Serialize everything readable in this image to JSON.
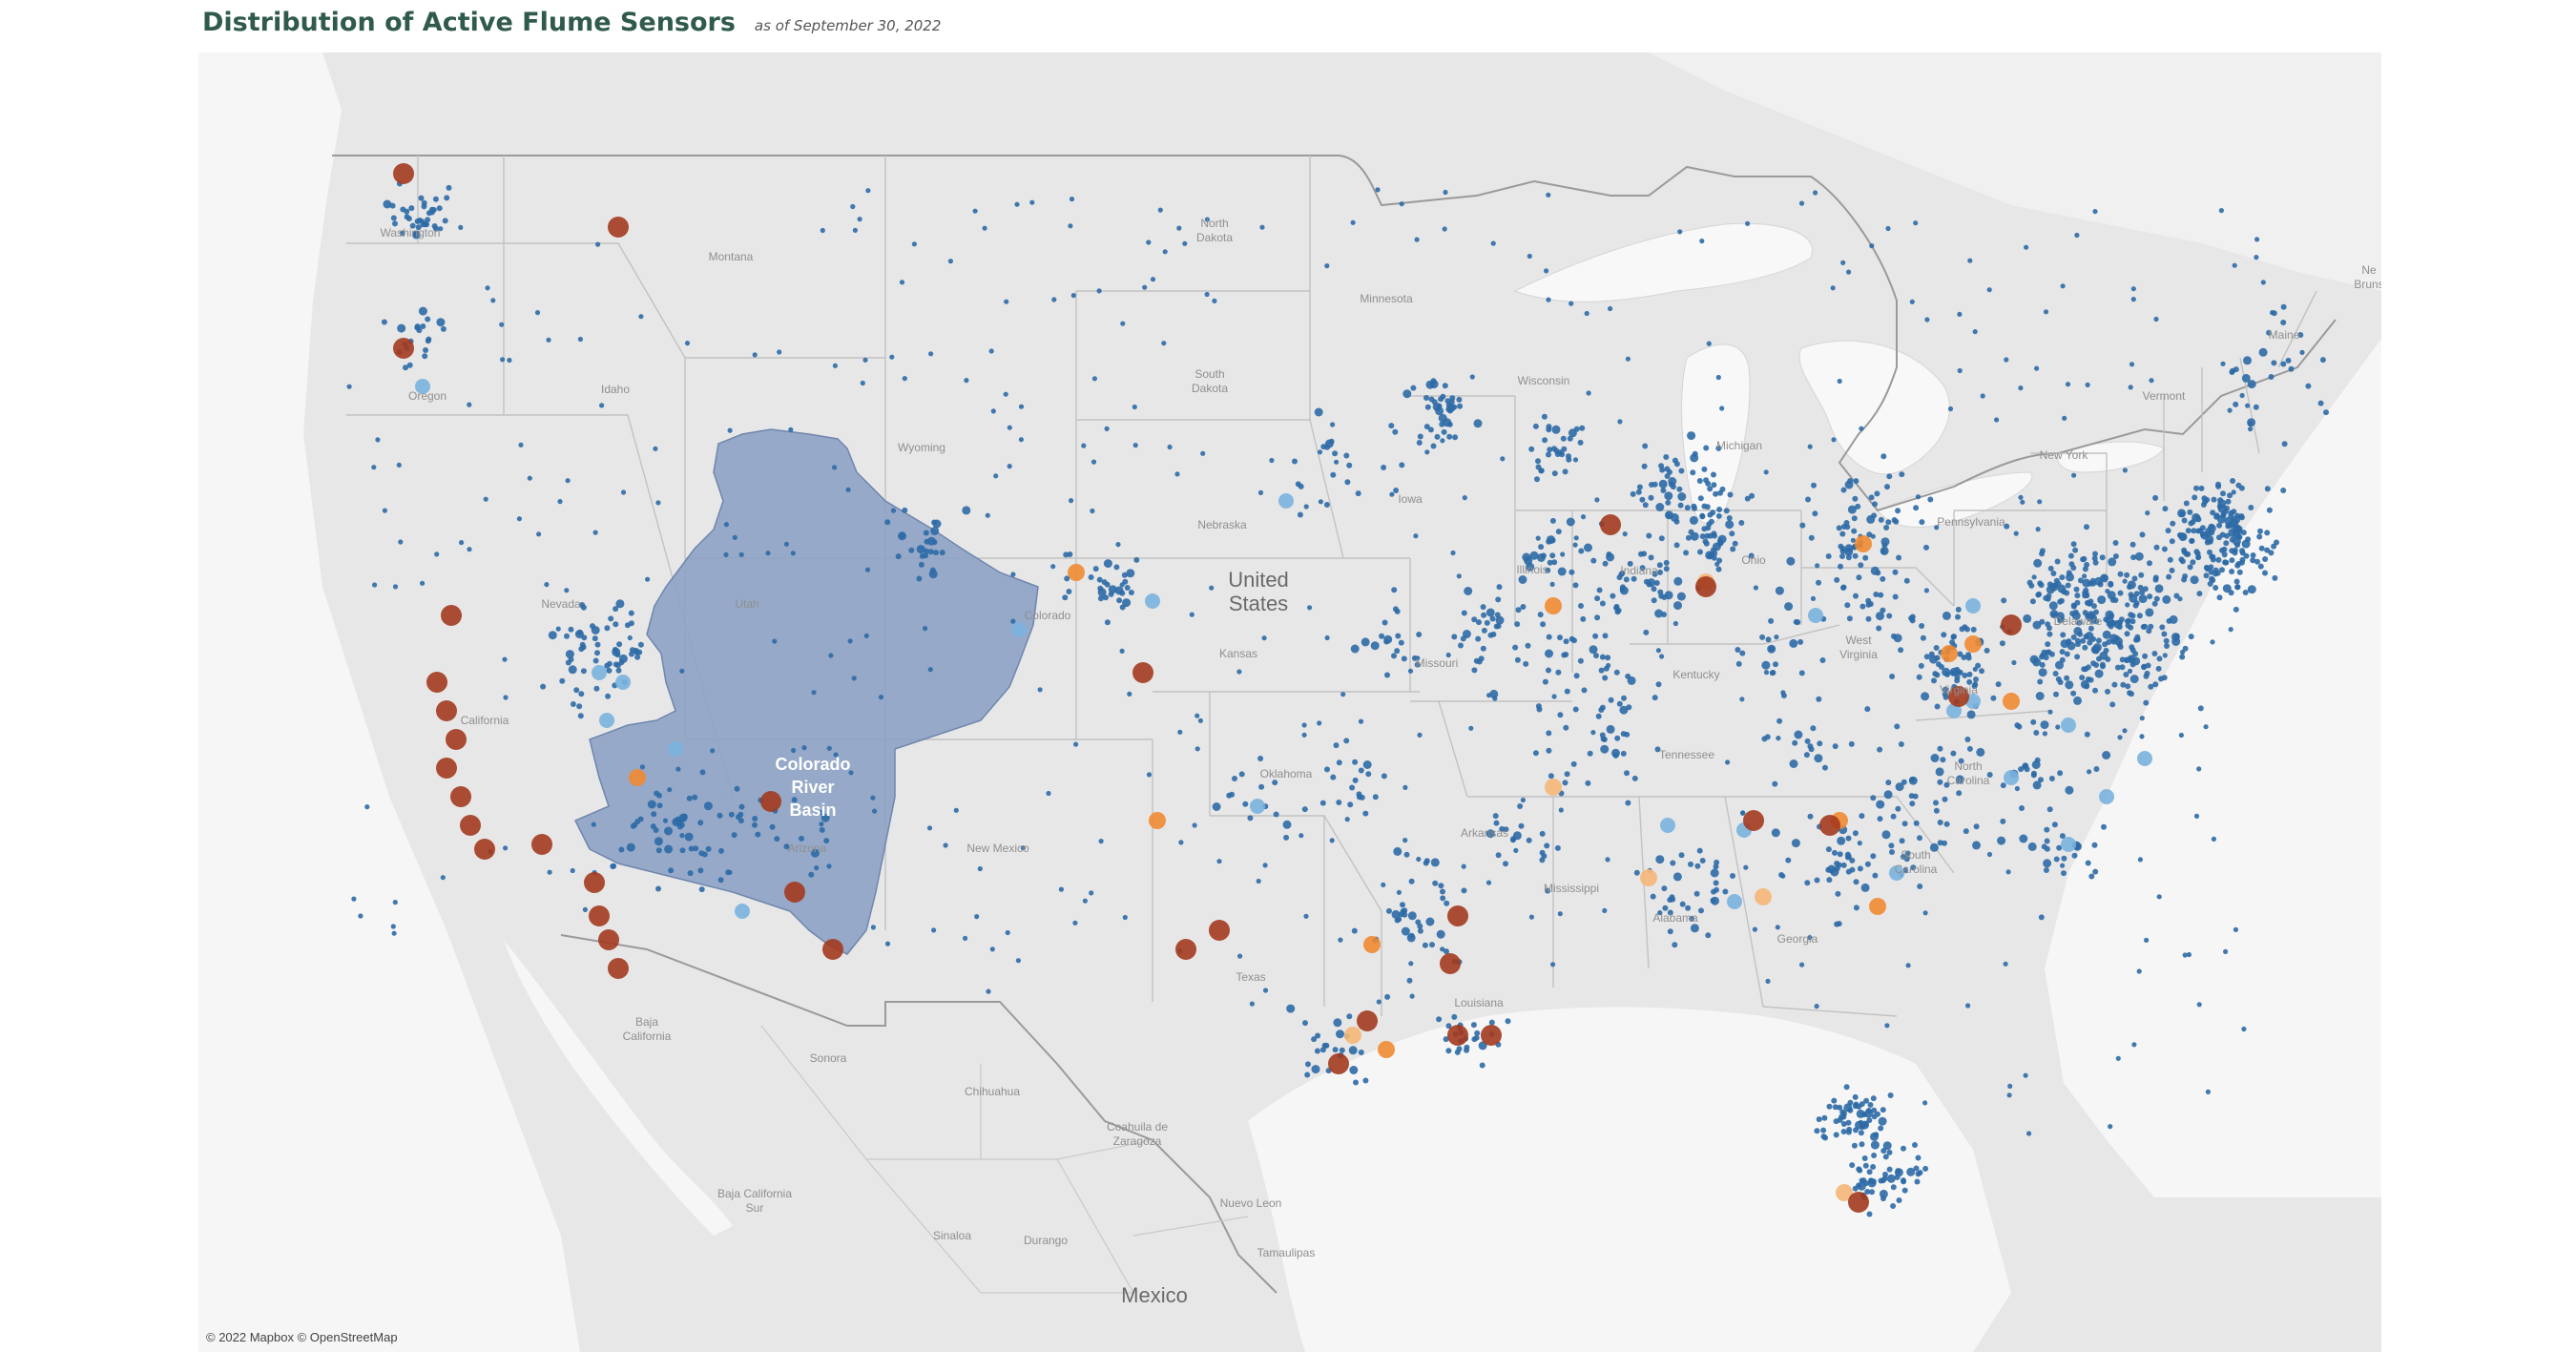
{
  "title": "Distribution of Active Flume Sensors",
  "subtitle": "as of September 30, 2022",
  "attribution": "© 2022 Mapbox © OpenStreetMap",
  "colors": {
    "land": "#e7e7e7",
    "water": "#f8f8f8",
    "border": "#bdbdbd",
    "basin_fill": "#8da2c4",
    "dark_blue": "#2e6aa6",
    "light_blue": "#7ab3de",
    "orange": "#f08a32",
    "light_orange": "#f5b777",
    "dark_red": "#a33a1f"
  },
  "basin_label": [
    "Colorado",
    "River",
    "Basin"
  ],
  "place_labels": {
    "countries": [
      "United",
      "States",
      "Mexico"
    ],
    "states": [
      "Washington",
      "Montana",
      "North",
      "Dakota",
      "Minnesota",
      "Oregon",
      "Idaho",
      "South",
      "Dakota",
      "Wisconsin",
      "Wyoming",
      "Michigan",
      "Nebraska",
      "Iowa",
      "Nevada",
      "Utah",
      "Colorado",
      "Illinois",
      "Indiana",
      "Ohio",
      "Pennsylvania",
      "California",
      "Kansas",
      "Missouri",
      "West",
      "Virginia",
      "Kentucky",
      "Virginia",
      "Oklahoma",
      "Tennessee",
      "North",
      "Carolina",
      "Arizona",
      "New Mexico",
      "Arkansas",
      "South",
      "Carolina",
      "Mississippi",
      "Alabama",
      "Georgia",
      "Texas",
      "Louisiana",
      "Maine",
      "Vermont",
      "New York",
      "Delaware",
      "Ne",
      "Bruns"
    ],
    "mexico_states": [
      "Baja",
      "California",
      "Sonora",
      "Chihuahua",
      "Coahuila de",
      "Zaragoza",
      "Baja California",
      "Sur",
      "Nuevo Leon",
      "Sinaloa",
      "Durango",
      "Tamaulipas",
      "Mexico"
    ]
  }
}
